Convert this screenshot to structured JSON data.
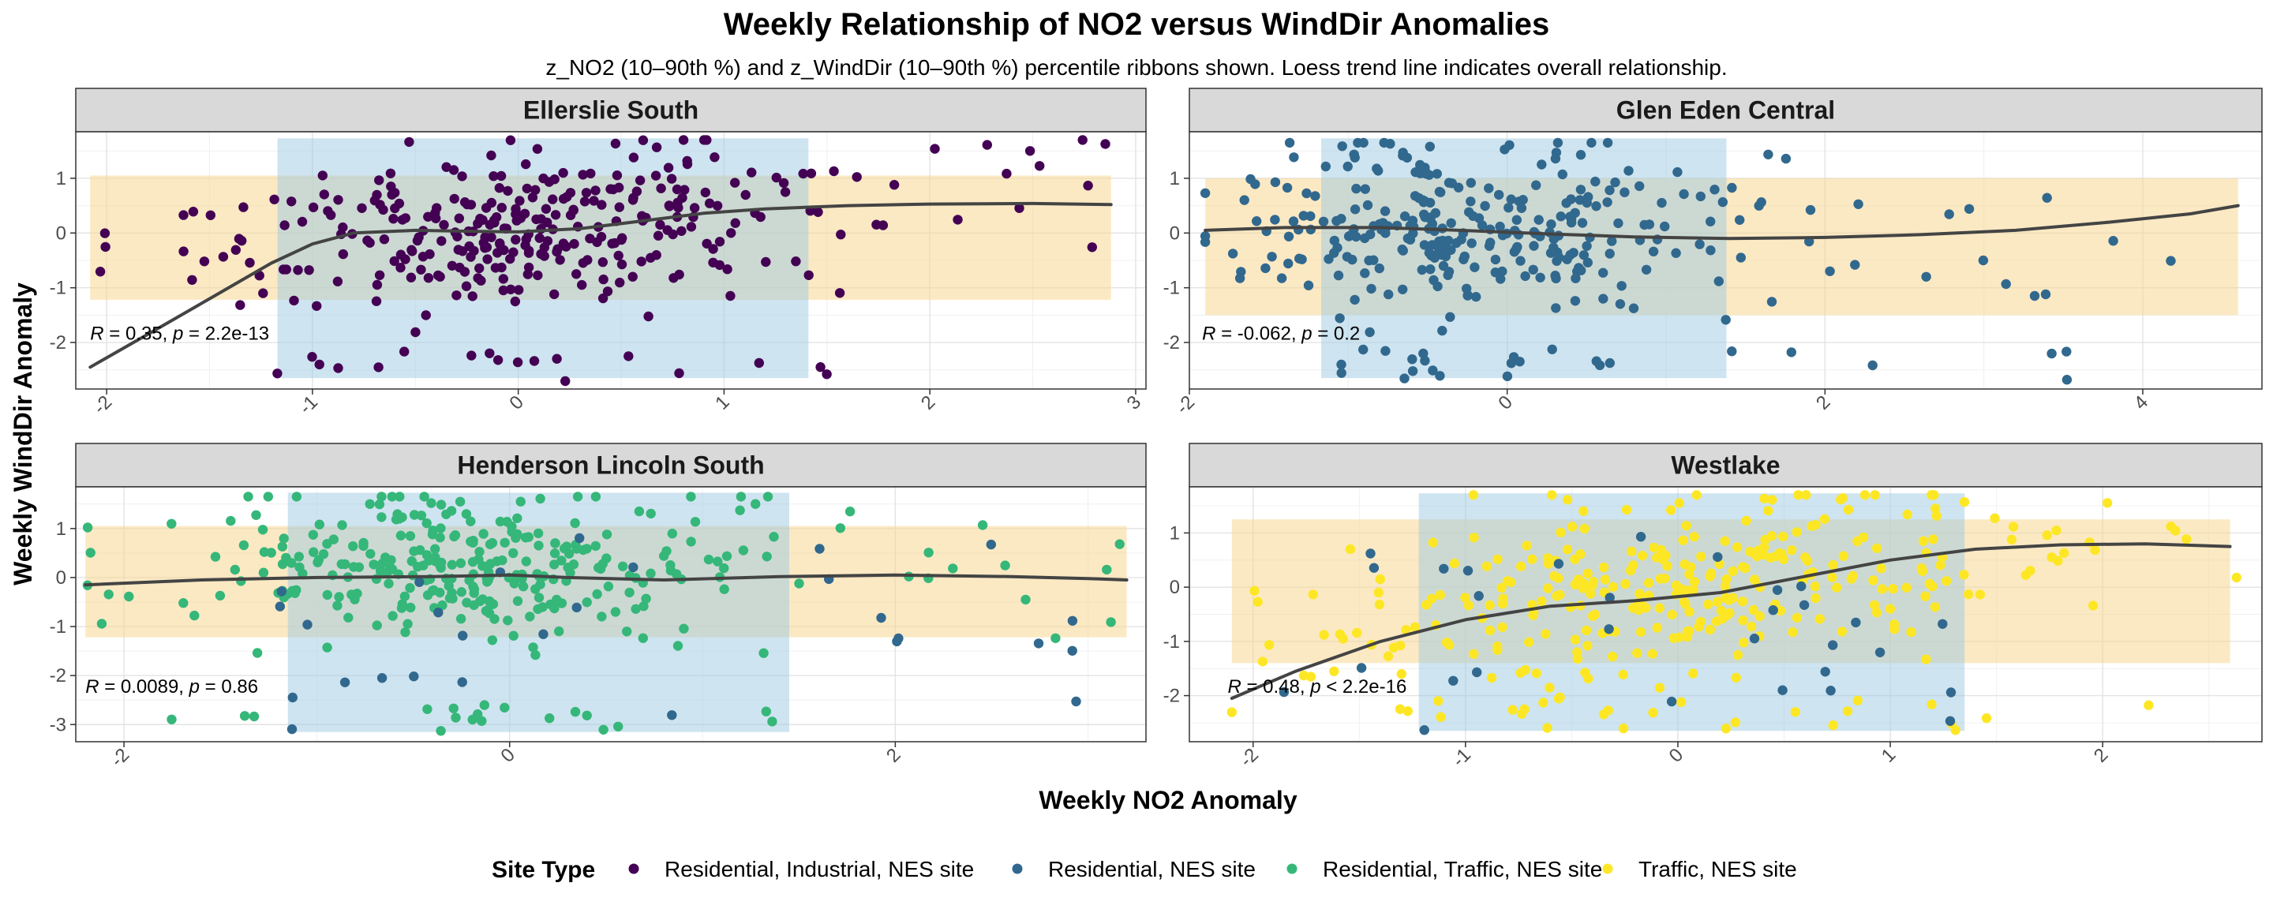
{
  "title": "Weekly Relationship of NO2 versus WindDir Anomalies",
  "subtitle": "z_NO2 (10–90th %) and z_WindDir (10–90th %) percentile ribbons shown. Loess trend line indicates overall relationship.",
  "xlabel": "Weekly NO2 Anomaly",
  "ylabel": "Weekly WindDir Anomaly",
  "legend": {
    "title": "Site Type",
    "placement": "bottom",
    "items": [
      {
        "label": "Residential, Industrial, NES site",
        "color": "#440154"
      },
      {
        "label": "Residential, NES site",
        "color": "#31688E"
      },
      {
        "label": "Residential, Traffic, NES site",
        "color": "#35B779"
      },
      {
        "label": "Traffic, NES site",
        "color": "#FDE725"
      }
    ]
  },
  "colors": {
    "x_ribbon": "#9ECAE1",
    "y_ribbon": "#F7D794",
    "trend": "#444444",
    "strip_fill": "#D9D9D9"
  },
  "chart_data": [
    {
      "type": "scatter",
      "facet": "Ellerslie South",
      "xlim": [
        -2.15,
        3.05
      ],
      "ylim": [
        -2.85,
        1.85
      ],
      "xticks": [
        -2,
        -1,
        0,
        1,
        2,
        3
      ],
      "yticks": [
        -2,
        -1,
        0,
        1
      ],
      "x_ribbon": [
        -1.17,
        1.41
      ],
      "y_ribbon": [
        -1.22,
        1.05
      ],
      "annotation": {
        "r": "0.35",
        "p_op": "=",
        "p": "2.2e-13",
        "x": -2.08,
        "y": -1.95
      },
      "trend": [
        [
          -2.08,
          -2.45
        ],
        [
          -1.8,
          -1.85
        ],
        [
          -1.5,
          -1.2
        ],
        [
          -1.2,
          -0.55
        ],
        [
          -1.0,
          -0.2
        ],
        [
          -0.8,
          0.0
        ],
        [
          -0.5,
          0.05
        ],
        [
          -0.2,
          0.03
        ],
        [
          0.0,
          0.02
        ],
        [
          0.3,
          0.08
        ],
        [
          0.6,
          0.22
        ],
        [
          0.9,
          0.36
        ],
        [
          1.2,
          0.44
        ],
        [
          1.6,
          0.5
        ],
        [
          2.0,
          0.53
        ],
        [
          2.5,
          0.54
        ],
        [
          2.88,
          0.52
        ]
      ],
      "groups": [
        {
          "type": "Residential, Industrial, NES site",
          "n": 340,
          "x_range": [
            -2.1,
            2.9
          ],
          "y_range": [
            -2.75,
            1.7
          ],
          "dist": "rel",
          "mx": 0.0,
          "sx": 0.7,
          "my": 0.05,
          "sy": 0.65,
          "slope": 0.35
        }
      ]
    },
    {
      "type": "scatter",
      "facet": "Glen Eden Central",
      "xlim": [
        -2.0,
        4.75
      ],
      "ylim": [
        -2.85,
        1.85
      ],
      "xticks": [
        -2,
        0,
        2,
        4
      ],
      "yticks": [
        -2,
        -1,
        0,
        1
      ],
      "x_ribbon": [
        -1.17,
        1.38
      ],
      "y_ribbon": [
        -1.5,
        1.0
      ],
      "annotation": {
        "r": "-0.062",
        "p_op": "=",
        "p": "0.2",
        "x": -1.92,
        "y": -1.95
      },
      "trend": [
        [
          -1.9,
          0.05
        ],
        [
          -1.4,
          0.1
        ],
        [
          -0.8,
          0.1
        ],
        [
          -0.3,
          0.05
        ],
        [
          0.3,
          -0.02
        ],
        [
          0.8,
          -0.07
        ],
        [
          1.4,
          -0.1
        ],
        [
          2.0,
          -0.08
        ],
        [
          2.6,
          -0.03
        ],
        [
          3.2,
          0.05
        ],
        [
          3.8,
          0.2
        ],
        [
          4.3,
          0.35
        ],
        [
          4.6,
          0.5
        ]
      ],
      "groups": [
        {
          "type": "Residential, NES site",
          "n": 330,
          "x_range": [
            -1.9,
            4.6
          ],
          "y_range": [
            -2.7,
            1.65
          ],
          "dist": "rel",
          "mx": -0.2,
          "sx": 0.75,
          "my": 0.1,
          "sy": 0.75,
          "slope": -0.06
        }
      ]
    },
    {
      "type": "scatter",
      "facet": "Henderson Lincoln South",
      "xlim": [
        -2.25,
        3.3
      ],
      "ylim": [
        -3.35,
        1.85
      ],
      "xticks": [
        -2,
        0,
        2
      ],
      "yticks": [
        -3,
        -2,
        -1,
        0,
        1
      ],
      "x_ribbon": [
        -1.15,
        1.45
      ],
      "y_ribbon": [
        -1.22,
        1.05
      ],
      "annotation": {
        "r": "0.0089",
        "p_op": "=",
        "p": "0.86",
        "x": -2.2,
        "y": -2.35
      },
      "trend": [
        [
          -2.2,
          -0.15
        ],
        [
          -1.6,
          -0.05
        ],
        [
          -1.0,
          0.0
        ],
        [
          -0.4,
          0.02
        ],
        [
          0.0,
          0.05
        ],
        [
          0.3,
          0.0
        ],
        [
          0.8,
          -0.05
        ],
        [
          1.4,
          0.02
        ],
        [
          2.0,
          0.05
        ],
        [
          2.6,
          0.02
        ],
        [
          3.0,
          -0.02
        ],
        [
          3.2,
          -0.05
        ]
      ],
      "groups": [
        {
          "type": "Residential, Traffic, NES site",
          "n": 330,
          "x_range": [
            -2.2,
            3.2
          ],
          "y_range": [
            -3.2,
            1.65
          ],
          "dist": "rel",
          "mx": -0.2,
          "sx": 0.75,
          "my": 0.3,
          "sy": 0.7,
          "slope": 0.0
        },
        {
          "type": "Residential, NES site",
          "n": 28,
          "x_range": [
            -1.3,
            3.1
          ],
          "y_range": [
            -3.2,
            0.9
          ],
          "dist": "uniform"
        }
      ]
    },
    {
      "type": "scatter",
      "facet": "Westlake",
      "xlim": [
        -2.3,
        2.75
      ],
      "ylim": [
        -2.85,
        1.85
      ],
      "xticks": [
        -2,
        -1,
        0,
        1,
        2
      ],
      "yticks": [
        -2,
        -1,
        0,
        1
      ],
      "x_ribbon": [
        -1.22,
        1.35
      ],
      "y_ribbon": [
        -1.4,
        1.25
      ],
      "annotation": {
        "r": "0.48",
        "p_op": "<",
        "p": "2.2e-16",
        "x": -2.12,
        "y": -1.95
      },
      "trend": [
        [
          -2.1,
          -2.05
        ],
        [
          -1.8,
          -1.55
        ],
        [
          -1.4,
          -1.0
        ],
        [
          -1.0,
          -0.6
        ],
        [
          -0.6,
          -0.35
        ],
        [
          -0.2,
          -0.25
        ],
        [
          0.2,
          -0.1
        ],
        [
          0.6,
          0.2
        ],
        [
          1.0,
          0.5
        ],
        [
          1.4,
          0.7
        ],
        [
          1.8,
          0.78
        ],
        [
          2.2,
          0.8
        ],
        [
          2.6,
          0.75
        ]
      ],
      "groups": [
        {
          "type": "Traffic, NES site",
          "n": 330,
          "x_range": [
            -2.1,
            2.65
          ],
          "y_range": [
            -2.65,
            1.7
          ],
          "dist": "rel",
          "mx": 0.0,
          "sx": 0.8,
          "my": 0.0,
          "sy": 0.8,
          "slope": 0.48
        },
        {
          "type": "Residential, NES site",
          "n": 30,
          "x_range": [
            -2.1,
            1.3
          ],
          "y_range": [
            -2.65,
            1.1
          ],
          "dist": "uniform"
        }
      ]
    }
  ]
}
